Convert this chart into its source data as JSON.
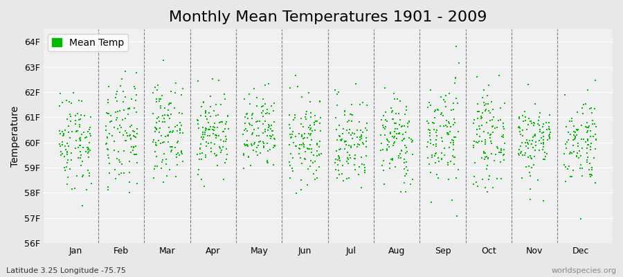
{
  "title": "Monthly Mean Temperatures 1901 - 2009",
  "ylabel": "Temperature",
  "subtitle": "Latitude 3.25 Longitude -75.75",
  "watermark": "worldspecies.org",
  "legend_label": "Mean Temp",
  "dot_color": "#00bb00",
  "bg_color": "#e8e8e8",
  "plot_bg_color": "#f0f0f0",
  "grid_color": "#ffffff",
  "dashed_line_color": "#808080",
  "months": [
    "Jan",
    "Feb",
    "Mar",
    "Apr",
    "May",
    "Jun",
    "Jul",
    "Aug",
    "Sep",
    "Oct",
    "Nov",
    "Dec"
  ],
  "ylim": [
    56,
    64.5
  ],
  "yticks": [
    56,
    57,
    58,
    59,
    60,
    61,
    62,
    63,
    64
  ],
  "ytick_labels": [
    "56F",
    "57F",
    "58F",
    "59F",
    "60F",
    "61F",
    "62F",
    "63F",
    "64F"
  ],
  "title_fontsize": 16,
  "label_fontsize": 10,
  "tick_fontsize": 9,
  "dot_size": 4,
  "dot_marker": "s",
  "n_years": 109,
  "monthly_means": [
    60.1,
    60.2,
    60.5,
    60.4,
    60.3,
    60.0,
    60.0,
    60.1,
    60.3,
    60.2,
    60.1,
    60.1
  ],
  "monthly_stds": [
    1.0,
    1.1,
    0.9,
    0.8,
    0.8,
    0.9,
    0.9,
    0.9,
    1.1,
    0.9,
    0.8,
    0.9
  ]
}
